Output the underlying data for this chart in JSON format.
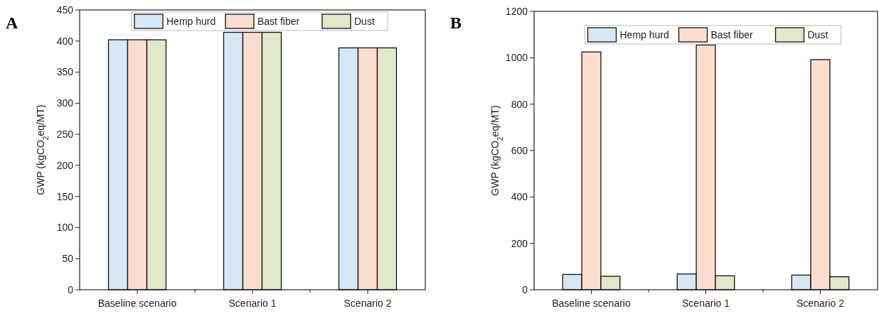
{
  "chart_data": [
    {
      "type": "bar",
      "annotations": [
        "A"
      ],
      "ylabel": "GWP (kgCO$_{2}$eq/MT)",
      "categories": [
        "Baseline scenario",
        "Scenario 1",
        "Scenario 2"
      ],
      "series": [
        {
          "name": "Hemp hurd",
          "color": "#d6e7f3",
          "values": [
            402,
            414,
            389
          ]
        },
        {
          "name": "Bast fiber",
          "color": "#fbddd0",
          "values": [
            402,
            414,
            389
          ]
        },
        {
          "name": "Dust",
          "color": "#dfe8c8",
          "values": [
            402,
            414,
            389
          ]
        }
      ],
      "ylim": [
        0,
        450
      ],
      "yticks": [
        0,
        50,
        100,
        150,
        200,
        250,
        300,
        350,
        400,
        450
      ],
      "legend": "top",
      "grid": false
    },
    {
      "type": "bar",
      "annotations": [
        "B"
      ],
      "ylabel": "GWP (kgCO$_{2}$eq/MT)",
      "categories": [
        "Baseline scenario",
        "Scenario 1",
        "Scenario 2"
      ],
      "series": [
        {
          "name": "Hemp hurd",
          "color": "#d6e7f3",
          "values": [
            66,
            68,
            63
          ]
        },
        {
          "name": "Bast fiber",
          "color": "#fbddd0",
          "values": [
            1025,
            1055,
            992
          ]
        },
        {
          "name": "Dust",
          "color": "#dfe8c8",
          "values": [
            58,
            60,
            56
          ]
        }
      ],
      "ylim": [
        0,
        1200
      ],
      "yticks": [
        0,
        200,
        400,
        600,
        800,
        1000,
        1200
      ],
      "legend": "top",
      "grid": false
    }
  ]
}
